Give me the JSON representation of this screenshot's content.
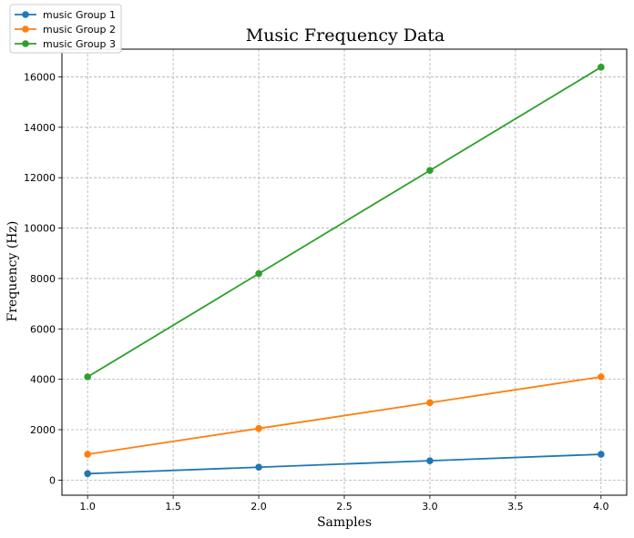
{
  "chart_data": {
    "type": "line",
    "title": "Music Frequency Data",
    "xlabel": "Samples",
    "ylabel": "Frequency (Hz)",
    "x": [
      1.0,
      2.0,
      3.0,
      4.0
    ],
    "xlim": [
      0.85,
      4.15
    ],
    "ylim": [
      -600,
      17100
    ],
    "xticks": [
      1.0,
      1.5,
      2.0,
      2.5,
      3.0,
      3.5,
      4.0
    ],
    "xtick_labels": [
      "1.0",
      "1.5",
      "2.0",
      "2.5",
      "3.0",
      "3.5",
      "4.0"
    ],
    "yticks": [
      0,
      2000,
      4000,
      6000,
      8000,
      10000,
      12000,
      14000,
      16000
    ],
    "ytick_labels": [
      "0",
      "2000",
      "4000",
      "6000",
      "8000",
      "10000",
      "12000",
      "14000",
      "16000"
    ],
    "grid": true,
    "legend_position": "top-left",
    "series": [
      {
        "name": "music Group 1",
        "color": "#1f77b4",
        "values": [
          256,
          512,
          768,
          1024
        ]
      },
      {
        "name": "music Group 2",
        "color": "#ff7f0e",
        "values": [
          1024,
          2048,
          3072,
          4096
        ]
      },
      {
        "name": "music Group 3",
        "color": "#2ca02c",
        "values": [
          4096,
          8192,
          12288,
          16384
        ]
      }
    ]
  }
}
